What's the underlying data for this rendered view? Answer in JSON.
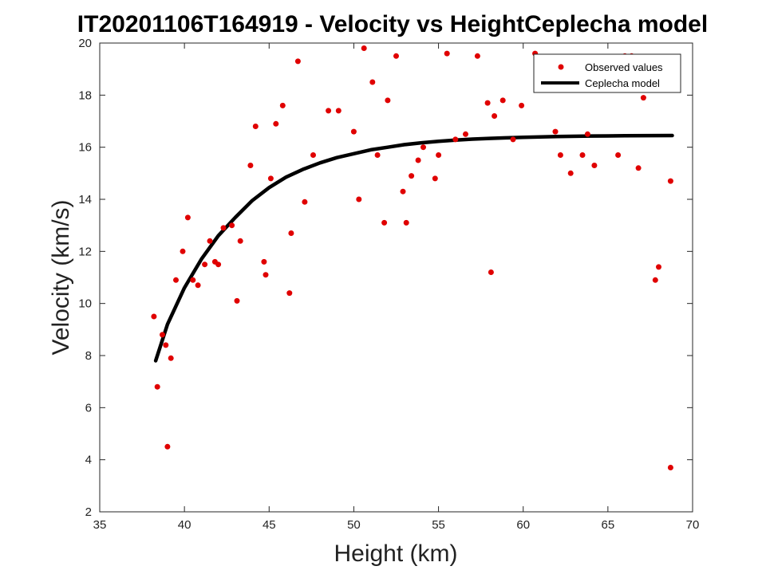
{
  "chart_data": {
    "type": "scatter",
    "title": "IT20201106T164919 - Velocity vs HeightCeplecha model",
    "xlabel": "Height (km)",
    "ylabel": "Velocity (km/s)",
    "xlim": [
      35,
      70
    ],
    "ylim": [
      2,
      20
    ],
    "xticks": [
      35,
      40,
      45,
      50,
      55,
      60,
      65,
      70
    ],
    "yticks": [
      2,
      4,
      6,
      8,
      10,
      12,
      14,
      16,
      18,
      20
    ],
    "grid": false,
    "legend_position": "top-right",
    "series": [
      {
        "name": "Observed values",
        "type": "scatter",
        "color": "#e00000",
        "points": [
          [
            38.2,
            9.5
          ],
          [
            38.4,
            6.8
          ],
          [
            38.7,
            8.8
          ],
          [
            38.9,
            8.4
          ],
          [
            39.0,
            4.5
          ],
          [
            39.2,
            7.9
          ],
          [
            39.5,
            10.9
          ],
          [
            39.9,
            12.0
          ],
          [
            40.2,
            13.3
          ],
          [
            40.5,
            10.9
          ],
          [
            40.8,
            10.7
          ],
          [
            41.2,
            11.5
          ],
          [
            41.5,
            12.4
          ],
          [
            41.8,
            11.6
          ],
          [
            42.0,
            11.5
          ],
          [
            42.3,
            12.9
          ],
          [
            42.8,
            13.0
          ],
          [
            43.1,
            10.1
          ],
          [
            43.3,
            12.4
          ],
          [
            43.9,
            15.3
          ],
          [
            44.2,
            16.8
          ],
          [
            44.7,
            11.6
          ],
          [
            44.8,
            11.1
          ],
          [
            45.1,
            14.8
          ],
          [
            45.4,
            16.9
          ],
          [
            45.8,
            17.6
          ],
          [
            46.2,
            10.4
          ],
          [
            46.3,
            12.7
          ],
          [
            46.7,
            19.3
          ],
          [
            47.1,
            13.9
          ],
          [
            47.6,
            15.7
          ],
          [
            48.5,
            17.4
          ],
          [
            49.1,
            17.4
          ],
          [
            50.0,
            16.6
          ],
          [
            50.3,
            14.0
          ],
          [
            50.6,
            19.8
          ],
          [
            51.1,
            18.5
          ],
          [
            51.4,
            15.7
          ],
          [
            51.8,
            13.1
          ],
          [
            52.0,
            17.8
          ],
          [
            52.5,
            19.5
          ],
          [
            52.9,
            14.3
          ],
          [
            53.1,
            13.1
          ],
          [
            53.4,
            14.9
          ],
          [
            53.8,
            15.5
          ],
          [
            54.1,
            16.0
          ],
          [
            54.8,
            14.8
          ],
          [
            55.0,
            15.7
          ],
          [
            55.5,
            19.6
          ],
          [
            56.0,
            16.3
          ],
          [
            56.6,
            16.5
          ],
          [
            57.3,
            19.5
          ],
          [
            57.9,
            17.7
          ],
          [
            58.1,
            11.2
          ],
          [
            58.3,
            17.2
          ],
          [
            58.8,
            17.8
          ],
          [
            59.4,
            16.3
          ],
          [
            59.9,
            17.6
          ],
          [
            60.7,
            19.6
          ],
          [
            61.9,
            16.6
          ],
          [
            62.2,
            15.7
          ],
          [
            62.8,
            15.0
          ],
          [
            63.5,
            15.7
          ],
          [
            63.8,
            16.5
          ],
          [
            64.2,
            15.3
          ],
          [
            65.6,
            15.7
          ],
          [
            66.0,
            19.5
          ],
          [
            66.4,
            19.5
          ],
          [
            66.8,
            15.2
          ],
          [
            67.1,
            17.9
          ],
          [
            67.8,
            10.9
          ],
          [
            68.0,
            11.4
          ],
          [
            68.7,
            14.7
          ],
          [
            68.7,
            3.7
          ]
        ]
      },
      {
        "name": "Ceplecha model",
        "type": "line",
        "color": "#000000",
        "points": [
          [
            38.3,
            7.8
          ],
          [
            39.0,
            9.2
          ],
          [
            40.0,
            10.6
          ],
          [
            41.0,
            11.7
          ],
          [
            42.0,
            12.6
          ],
          [
            43.0,
            13.3
          ],
          [
            44.0,
            13.95
          ],
          [
            45.0,
            14.45
          ],
          [
            46.0,
            14.85
          ],
          [
            47.0,
            15.15
          ],
          [
            48.0,
            15.4
          ],
          [
            49.0,
            15.6
          ],
          [
            50.0,
            15.75
          ],
          [
            51.0,
            15.9
          ],
          [
            52.0,
            16.0
          ],
          [
            53.0,
            16.1
          ],
          [
            54.0,
            16.17
          ],
          [
            55.0,
            16.23
          ],
          [
            56.0,
            16.27
          ],
          [
            57.0,
            16.31
          ],
          [
            58.0,
            16.34
          ],
          [
            59.0,
            16.36
          ],
          [
            60.0,
            16.38
          ],
          [
            62.0,
            16.41
          ],
          [
            64.0,
            16.43
          ],
          [
            66.0,
            16.44
          ],
          [
            68.8,
            16.45
          ]
        ]
      }
    ]
  }
}
